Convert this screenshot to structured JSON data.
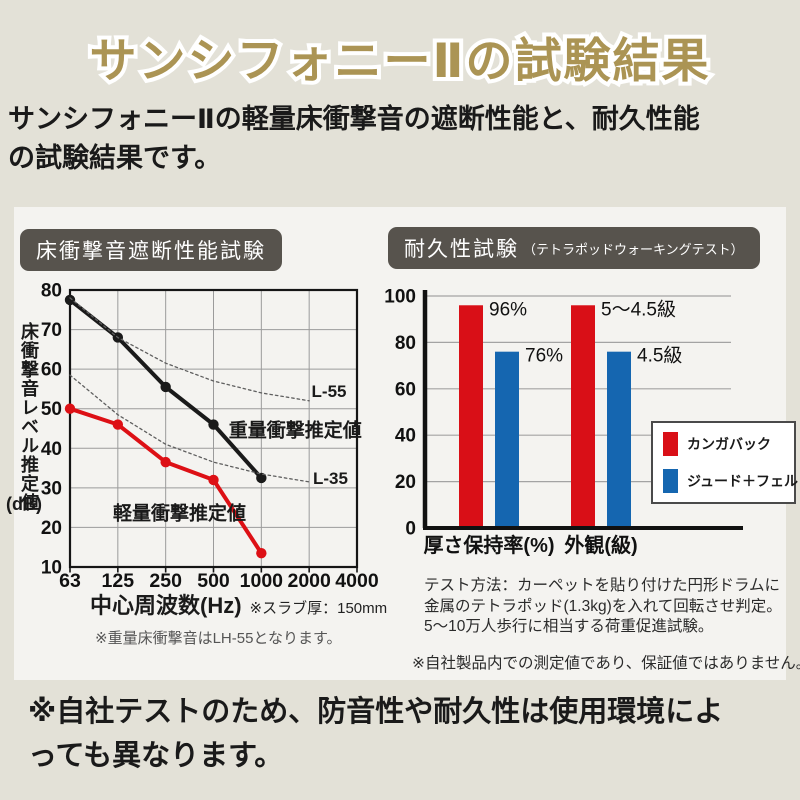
{
  "colors": {
    "page_bg": "#e3e1d7",
    "panel_bg": "#f4f3f0",
    "title_gold": "#ab9454",
    "badge_bg": "#57534d",
    "accent_red": "#d90f17",
    "accent_blue": "#1566b0",
    "line_black": "#1a1a1a",
    "line_red": "#dd1015",
    "dotted_gray": "#5f5f5f"
  },
  "header": {
    "title": "サンシフォニーⅡの試験結果",
    "subtitle_lines": [
      "サンシフォニーⅡの軽量床衝撃音の遮断性能と、耐久性能",
      "の試験結果です。"
    ]
  },
  "left_panel": {
    "badge": "床衝撃音遮断性能試験",
    "ylabel": "床衝撃音レベル推定値",
    "ylabel_unit": "(dB)",
    "xlabel": "中心周波数(Hz)",
    "xlabel_note": "※スラブ厚：150mm",
    "footnote": "※重量床衝撃音はLH-55となります。"
  },
  "right_panel": {
    "badge": "耐久性試験",
    "badge_note": "（テトラポッドウォーキングテスト）",
    "method_lines": [
      "テスト方法：カーペットを貼り付けた円形ドラムに",
      "金属のテトラポッド(1.3kg)を入れて回転させ判定。",
      "5〜10万人歩行に相当する荷重促進試験。"
    ],
    "disclaimer": "※自社製品内での測定値であり、保証値ではありません。"
  },
  "footer": {
    "note_lines": [
      "※自社テストのため、防音性や耐久性は使用環境によ",
      "っても異なります。"
    ]
  },
  "chart_data": [
    {
      "type": "line",
      "title": "床衝撃音遮断性能試験",
      "xlabel": "中心周波数(Hz) ※スラブ厚：150mm",
      "ylabel": "床衝撃音レベル推定値(dB)",
      "x_tick_labels": [
        "63",
        "125",
        "250",
        "500",
        "1000",
        "2000",
        "4000"
      ],
      "y_ticks": [
        80,
        70,
        60,
        50,
        40,
        30,
        20,
        10
      ],
      "ylim": [
        10,
        80
      ],
      "grid": true,
      "series": [
        {
          "name": "重量衝撃推定値",
          "color": "#1a1a1a",
          "style": "solid",
          "markers": true,
          "values": [
            77.5,
            68,
            55.5,
            46,
            32.5,
            null,
            null
          ]
        },
        {
          "name": "軽量衝撃推定値",
          "color": "#dd1015",
          "style": "solid",
          "markers": true,
          "values": [
            50,
            46,
            36.5,
            32,
            13.5,
            null,
            null
          ]
        },
        {
          "name": "L-55",
          "color": "#5f5f5f",
          "style": "dotted",
          "markers": false,
          "values": [
            78,
            68,
            61.5,
            57,
            54,
            52,
            null
          ]
        },
        {
          "name": "L-35",
          "color": "#5f5f5f",
          "style": "dotted",
          "markers": false,
          "values": [
            58.5,
            48.5,
            41,
            36.5,
            33.5,
            31.5,
            null
          ]
        }
      ],
      "annotations": [
        {
          "text": "L-55",
          "xi": 5.05,
          "y": 54.5,
          "bold": false
        },
        {
          "text": "重量衝撃推定値",
          "xi": 3.32,
          "y": 44.5,
          "bold": true
        },
        {
          "text": "L-35",
          "xi": 5.08,
          "y": 32.5,
          "bold": false
        },
        {
          "text": "軽量衝撃推定値",
          "xi": 0.9,
          "y": 23.5,
          "bold": true
        }
      ],
      "footnote": "※重量床衝撃音はLH-55となります。"
    },
    {
      "type": "bar",
      "title": "耐久性試験（テトラポッドウォーキングテスト）",
      "categories": [
        "厚さ保持率(%)",
        "外観(級)"
      ],
      "y_ticks": [
        100,
        80,
        60,
        40,
        20,
        0
      ],
      "ylim": [
        0,
        100
      ],
      "grid": true,
      "series": [
        {
          "name": "カンガバック",
          "color": "#d90f17",
          "values": [
            96,
            96
          ],
          "value_labels": [
            "96%",
            "5〜4.5級"
          ]
        },
        {
          "name": "ジュード＋フェルト",
          "color": "#1566b0",
          "values": [
            76,
            76
          ],
          "value_labels": [
            "76%",
            "4.5級"
          ]
        }
      ],
      "legend": [
        "カンガバック",
        "ジュード＋フェルト"
      ],
      "legend_position": "right-middle"
    }
  ]
}
